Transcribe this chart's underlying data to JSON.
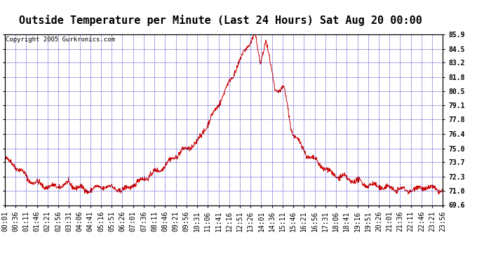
{
  "title": "Outside Temperature per Minute (Last 24 Hours) Sat Aug 20 00:00",
  "copyright": "Copyright 2005 Gurkronics.com",
  "ylabel_right_ticks": [
    69.6,
    71.0,
    72.3,
    73.7,
    75.0,
    76.4,
    77.8,
    79.1,
    80.5,
    81.8,
    83.2,
    84.5,
    85.9
  ],
  "ylim": [
    69.6,
    85.9
  ],
  "line_color": "#cc0000",
  "background_color": "#ffffff",
  "grid_color": "#0000bb",
  "border_color": "#000000",
  "title_fontsize": 11,
  "copyright_fontsize": 6.5,
  "tick_label_fontsize": 7,
  "x_tick_labels": [
    "00:01",
    "00:36",
    "01:11",
    "01:46",
    "02:21",
    "02:56",
    "03:31",
    "04:06",
    "04:41",
    "05:16",
    "05:51",
    "06:26",
    "07:01",
    "07:36",
    "08:11",
    "08:46",
    "09:21",
    "09:56",
    "10:31",
    "11:06",
    "11:41",
    "12:16",
    "12:51",
    "13:26",
    "14:01",
    "14:36",
    "15:11",
    "15:46",
    "16:21",
    "16:56",
    "17:31",
    "18:06",
    "18:41",
    "19:16",
    "19:51",
    "20:26",
    "21:01",
    "21:36",
    "22:11",
    "22:46",
    "23:21",
    "23:56"
  ]
}
